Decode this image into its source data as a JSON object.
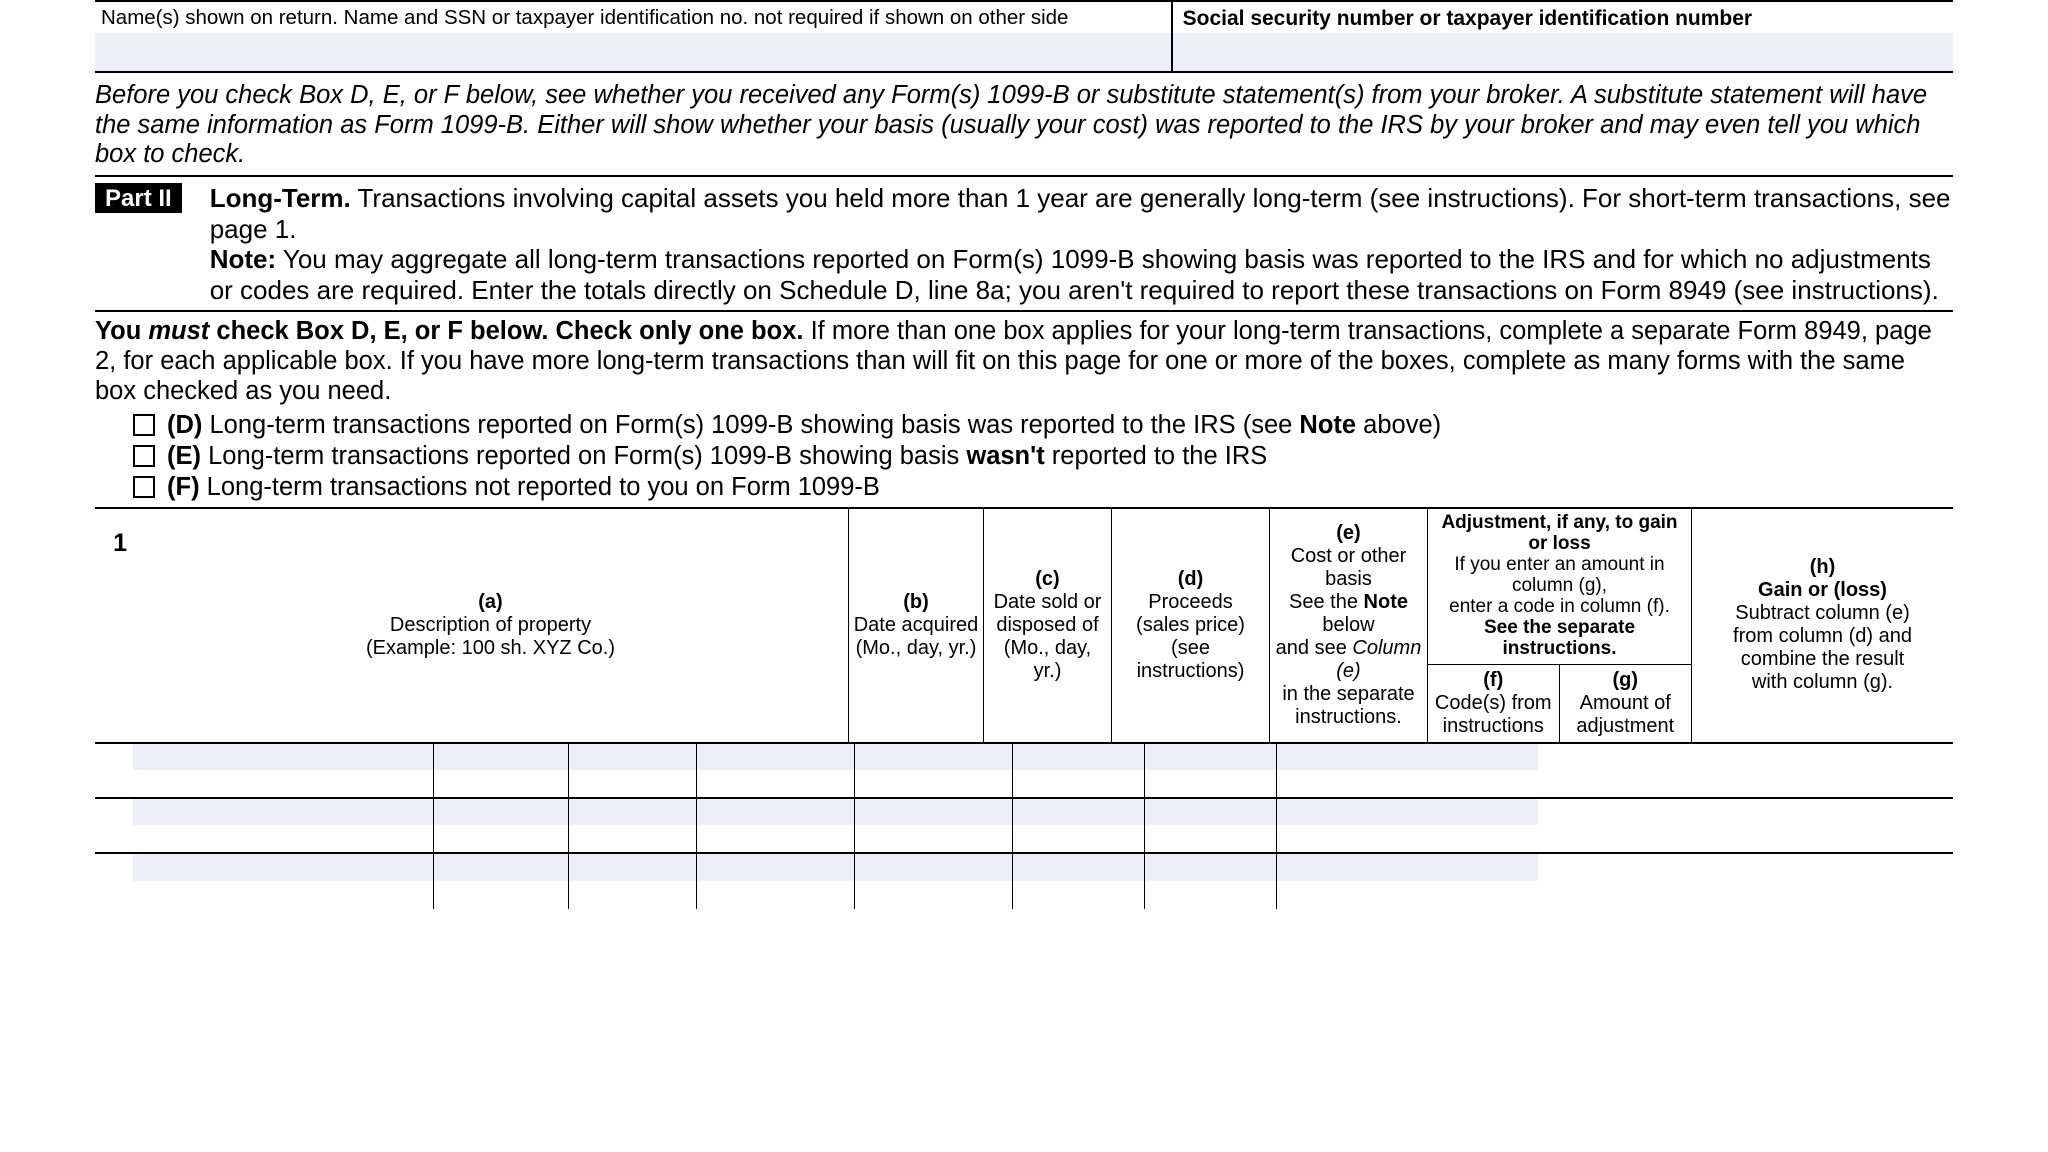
{
  "header": {
    "name_label": "Name(s) shown on return. Name and SSN or taxpayer identification no. not required if shown on other side",
    "ssn_label": "Social security number or taxpayer identification number"
  },
  "intro_italic": {
    "prefix": "Before you check Box D, E, or F below, see whether you received any Form(s) 1099-B or substitute statement(s) from your broker. A substitute statement will have the same information as Form 1099-B. Either will show whether your basis (usually your cost) was reported to the IRS by your broker and may even tell you which box to check."
  },
  "part2": {
    "badge": "Part II",
    "lt_bold": "Long-Term.",
    "lt_rest": " Transactions involving capital assets you held more than 1 year are generally long-term (see instructions). For short-term transactions, see page 1.",
    "note_bold": "Note:",
    "note_rest": " You may aggregate all long-term transactions reported on Form(s) 1099-B showing basis was reported to the IRS and for which no adjustments or codes are required. Enter the totals directly on Schedule D, line 8a; you aren't required to report these transactions on Form 8949 (see instructions)."
  },
  "youmust": {
    "you": "You ",
    "must": "must",
    "bold_rest": " check Box D, E, or F below. Check only one box.",
    "rest": " If more than one box applies for your long-term transactions, complete a separate Form 8949, page 2, for each applicable box. If you have more long-term transactions than will fit on this page for one or more of the boxes, complete as many forms with the same box checked as you need."
  },
  "checkboxes": {
    "d": {
      "letter": "(D)",
      "pre": " Long-term transactions reported on Form(s) 1099-B showing basis was reported to the IRS (see ",
      "note": "Note",
      "post": " above)"
    },
    "e": {
      "letter": "(E)",
      "pre": " Long-term transactions reported on Form(s) 1099-B showing basis ",
      "wasnt": "wasn't",
      "post": " reported to the IRS"
    },
    "f": {
      "letter": "(F)",
      "text": " Long-term transactions not reported to you on Form 1099-B"
    }
  },
  "table": {
    "row_num": "1",
    "a": {
      "h": "(a)",
      "l1": "Description of property",
      "l2": "(Example: 100 sh. XYZ Co.)"
    },
    "b": {
      "h": "(b)",
      "l1": "Date acquired",
      "l2": "(Mo., day, yr.)"
    },
    "c": {
      "h": "(c)",
      "l1": "Date sold or",
      "l2": "disposed of",
      "l3": "(Mo., day, yr.)"
    },
    "d": {
      "h": "(d)",
      "l1": "Proceeds",
      "l2": "(sales price)",
      "l3": "(see instructions)"
    },
    "e": {
      "h": "(e)",
      "l1": "Cost or other basis",
      "pre": "See the ",
      "note": "Note",
      "post": " below",
      "l3a": "and see ",
      "l3i": "Column (e)",
      "l4": "in the separate",
      "l5": "instructions."
    },
    "fg_top": {
      "l1": "Adjustment, if any, to gain or loss",
      "l2": "If you enter an amount in column (g),",
      "l3": "enter a code in column (f).",
      "l4": "See the separate instructions."
    },
    "f": {
      "h": "(f)",
      "l1": "Code(s) from",
      "l2": "instructions"
    },
    "g": {
      "h": "(g)",
      "l1": "Amount of",
      "l2": "adjustment"
    },
    "h": {
      "h": "(h)",
      "l1": "Gain or (loss)",
      "l2": "Subtract column (e)",
      "l3": "from column (d) and",
      "l4": "combine the result",
      "l5": "with column (g)."
    }
  }
}
